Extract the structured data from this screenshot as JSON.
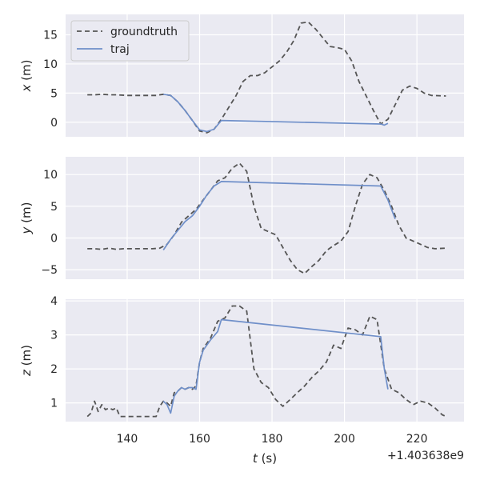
{
  "chart_data": {
    "type": "line",
    "colors": {
      "groundtruth": "#555555",
      "traj": "#6f8fc9",
      "background": "#eaeaf2",
      "grid": "#ffffff"
    },
    "x_axis": {
      "label_main": "t",
      "label_unit": "(s)",
      "ticks": [
        140,
        160,
        180,
        200,
        220
      ],
      "tick_labels": [
        "140",
        "160",
        "180",
        "200",
        "220"
      ],
      "offset_label": "+1.403638e9",
      "range": [
        123,
        233
      ]
    },
    "legend": {
      "placement": "top-left",
      "groundtruth_label": "groundtruth",
      "traj_label": "traj"
    },
    "panels": [
      {
        "name": "x",
        "ylabel_main": "x",
        "ylabel_unit": "(m)",
        "yticks": [
          0,
          5,
          10,
          15
        ],
        "ytick_labels": [
          "0",
          "5",
          "10",
          "15"
        ],
        "ylim": [
          -2.5,
          18.5
        ],
        "groundtruth": [
          [
            129,
            4.7
          ],
          [
            131,
            4.7
          ],
          [
            133,
            4.8
          ],
          [
            135,
            4.7
          ],
          [
            137,
            4.7
          ],
          [
            140,
            4.6
          ],
          [
            145,
            4.6
          ],
          [
            148,
            4.6
          ],
          [
            150,
            4.8
          ],
          [
            152,
            4.6
          ],
          [
            154,
            3.5
          ],
          [
            156,
            2.0
          ],
          [
            158,
            0.3
          ],
          [
            160,
            -1.5
          ],
          [
            162,
            -1.8
          ],
          [
            164,
            -1.2
          ],
          [
            166,
            0.5
          ],
          [
            168,
            2.5
          ],
          [
            170,
            4.5
          ],
          [
            172,
            7.0
          ],
          [
            174,
            8.0
          ],
          [
            176,
            8.0
          ],
          [
            178,
            8.5
          ],
          [
            180,
            9.5
          ],
          [
            182,
            10.5
          ],
          [
            184,
            12.0
          ],
          [
            186,
            14.0
          ],
          [
            188,
            17.0
          ],
          [
            190,
            17.2
          ],
          [
            192,
            16.0
          ],
          [
            194,
            14.5
          ],
          [
            196,
            13.0
          ],
          [
            198,
            12.8
          ],
          [
            200,
            12.5
          ],
          [
            202,
            10.5
          ],
          [
            204,
            7.0
          ],
          [
            206,
            4.5
          ],
          [
            208,
            2.0
          ],
          [
            210,
            -0.3
          ],
          [
            212,
            0.5
          ],
          [
            214,
            3.0
          ],
          [
            216,
            5.5
          ],
          [
            218,
            6.2
          ],
          [
            220,
            5.8
          ],
          [
            222,
            5.0
          ],
          [
            224,
            4.6
          ],
          [
            228,
            4.5
          ]
        ],
        "traj": [
          [
            150,
            4.8
          ],
          [
            152,
            4.6
          ],
          [
            154,
            3.5
          ],
          [
            156,
            2.0
          ],
          [
            158,
            0.3
          ],
          [
            160,
            -1.3
          ],
          [
            162,
            -1.6
          ],
          [
            164,
            -1.2
          ],
          [
            166,
            0.3
          ],
          [
            210,
            -0.3
          ],
          [
            211,
            -0.5
          ],
          [
            212,
            -0.2
          ]
        ]
      },
      {
        "name": "y",
        "ylabel_main": "y",
        "ylabel_unit": "(m)",
        "yticks": [
          -5,
          0,
          5,
          10
        ],
        "ytick_labels": [
          "−5",
          "0",
          "5",
          "10"
        ],
        "ylim": [
          -6.5,
          12.8
        ],
        "groundtruth": [
          [
            129,
            -1.7
          ],
          [
            131,
            -1.7
          ],
          [
            133,
            -1.8
          ],
          [
            135,
            -1.6
          ],
          [
            137,
            -1.8
          ],
          [
            139,
            -1.7
          ],
          [
            143,
            -1.7
          ],
          [
            147,
            -1.7
          ],
          [
            149,
            -1.6
          ],
          [
            151,
            -1.0
          ],
          [
            153,
            0.5
          ],
          [
            155,
            2.5
          ],
          [
            157,
            3.5
          ],
          [
            159,
            4.5
          ],
          [
            161,
            6.0
          ],
          [
            163,
            7.5
          ],
          [
            165,
            9.0
          ],
          [
            167,
            9.5
          ],
          [
            169,
            11.0
          ],
          [
            171,
            11.8
          ],
          [
            173,
            10.5
          ],
          [
            175,
            5.0
          ],
          [
            177,
            1.5
          ],
          [
            179,
            1.0
          ],
          [
            181,
            0.5
          ],
          [
            183,
            -1.5
          ],
          [
            185,
            -3.5
          ],
          [
            187,
            -5.0
          ],
          [
            189,
            -5.6
          ],
          [
            191,
            -4.5
          ],
          [
            193,
            -3.5
          ],
          [
            195,
            -2.0
          ],
          [
            197,
            -1.2
          ],
          [
            199,
            -0.5
          ],
          [
            201,
            1.0
          ],
          [
            203,
            5.0
          ],
          [
            205,
            8.5
          ],
          [
            207,
            10.0
          ],
          [
            209,
            9.5
          ],
          [
            211,
            7.5
          ],
          [
            213,
            5.0
          ],
          [
            215,
            2.0
          ],
          [
            217,
            0.0
          ],
          [
            219,
            -0.5
          ],
          [
            221,
            -1.0
          ],
          [
            223,
            -1.5
          ],
          [
            225,
            -1.7
          ],
          [
            228,
            -1.6
          ]
        ],
        "traj": [
          [
            150,
            -1.9
          ],
          [
            152,
            -0.2
          ],
          [
            154,
            1.2
          ],
          [
            156,
            2.6
          ],
          [
            158,
            3.5
          ],
          [
            160,
            5.0
          ],
          [
            162,
            6.8
          ],
          [
            164,
            8.2
          ],
          [
            166,
            8.9
          ],
          [
            210,
            8.2
          ],
          [
            212,
            6.0
          ],
          [
            214,
            3.0
          ]
        ]
      },
      {
        "name": "z",
        "ylabel_main": "z",
        "ylabel_unit": "(m)",
        "yticks": [
          1,
          2,
          3,
          4
        ],
        "ytick_labels": [
          "1",
          "2",
          "3",
          "4"
        ],
        "ylim": [
          0.45,
          4.05
        ],
        "groundtruth": [
          [
            129,
            0.6
          ],
          [
            130,
            0.7
          ],
          [
            131,
            1.05
          ],
          [
            132,
            0.75
          ],
          [
            133,
            0.95
          ],
          [
            134,
            0.8
          ],
          [
            135,
            0.85
          ],
          [
            136,
            0.8
          ],
          [
            137,
            0.85
          ],
          [
            138,
            0.6
          ],
          [
            140,
            0.6
          ],
          [
            145,
            0.6
          ],
          [
            148,
            0.6
          ],
          [
            149,
            0.9
          ],
          [
            150,
            1.05
          ],
          [
            151,
            1.0
          ],
          [
            152,
            0.9
          ],
          [
            153,
            1.3
          ],
          [
            154,
            1.35
          ],
          [
            155,
            1.45
          ],
          [
            156,
            1.4
          ],
          [
            157,
            1.45
          ],
          [
            158,
            1.4
          ],
          [
            159,
            1.5
          ],
          [
            160,
            2.2
          ],
          [
            161,
            2.6
          ],
          [
            163,
            2.9
          ],
          [
            165,
            3.4
          ],
          [
            167,
            3.5
          ],
          [
            169,
            3.85
          ],
          [
            171,
            3.85
          ],
          [
            173,
            3.7
          ],
          [
            175,
            2.0
          ],
          [
            177,
            1.6
          ],
          [
            179,
            1.45
          ],
          [
            181,
            1.1
          ],
          [
            183,
            0.9
          ],
          [
            185,
            1.1
          ],
          [
            187,
            1.3
          ],
          [
            189,
            1.5
          ],
          [
            191,
            1.75
          ],
          [
            193,
            1.95
          ],
          [
            195,
            2.2
          ],
          [
            197,
            2.7
          ],
          [
            199,
            2.6
          ],
          [
            200,
            2.9
          ],
          [
            201,
            3.2
          ],
          [
            203,
            3.15
          ],
          [
            205,
            3.0
          ],
          [
            207,
            3.55
          ],
          [
            209,
            3.45
          ],
          [
            211,
            2.0
          ],
          [
            213,
            1.4
          ],
          [
            215,
            1.3
          ],
          [
            217,
            1.1
          ],
          [
            219,
            0.95
          ],
          [
            221,
            1.05
          ],
          [
            223,
            1.0
          ],
          [
            225,
            0.85
          ],
          [
            227,
            0.65
          ],
          [
            228,
            0.6
          ]
        ],
        "traj": [
          [
            150,
            1.05
          ],
          [
            151,
            0.95
          ],
          [
            152,
            0.7
          ],
          [
            153,
            1.2
          ],
          [
            154,
            1.35
          ],
          [
            155,
            1.45
          ],
          [
            156,
            1.4
          ],
          [
            157,
            1.45
          ],
          [
            158,
            1.45
          ],
          [
            159,
            1.4
          ],
          [
            160,
            2.2
          ],
          [
            161,
            2.55
          ],
          [
            163,
            2.85
          ],
          [
            165,
            3.1
          ],
          [
            166,
            3.45
          ],
          [
            210,
            2.95
          ],
          [
            211,
            2.0
          ],
          [
            212,
            1.4
          ]
        ]
      }
    ]
  }
}
